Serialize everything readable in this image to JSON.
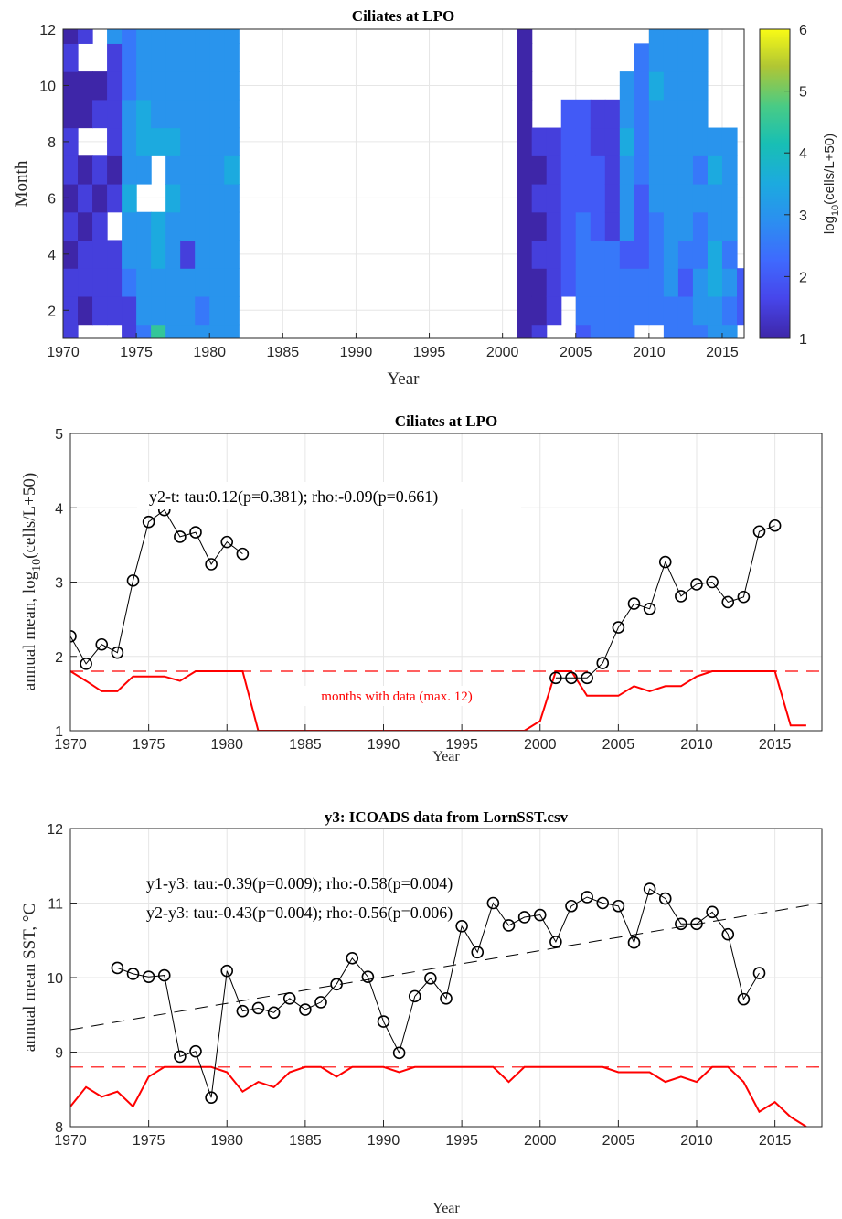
{
  "chart_data": [
    {
      "type": "heatmap",
      "title": "Ciliates at LPO",
      "xlabel": "Year",
      "ylabel": "Month",
      "colorbar_label_base": "log",
      "colorbar_label_sub": "10",
      "colorbar_label_rest": "(cells/L+50)",
      "xlim": [
        1970,
        2016.5
      ],
      "ylim": [
        1,
        12
      ],
      "zlim": [
        1,
        6
      ],
      "xticks": [
        1970,
        1975,
        1980,
        1985,
        1990,
        1995,
        2000,
        2005,
        2010,
        2015
      ],
      "yticks": [
        2,
        4,
        6,
        8,
        10,
        12
      ],
      "cticks": [
        1,
        2,
        3,
        4,
        5,
        6
      ],
      "colormap": "parula",
      "years": [
        1970,
        1971,
        1972,
        1973,
        1974,
        1975,
        1976,
        1977,
        1978,
        1979,
        1980,
        1981,
        2001,
        2002,
        2003,
        2004,
        2005,
        2006,
        2007,
        2008,
        2009,
        2010,
        2011,
        2012,
        2013,
        2014,
        2015,
        2016
      ],
      "months": [
        1,
        2,
        3,
        4,
        5,
        6,
        7,
        8,
        9,
        10,
        11,
        12
      ],
      "values": [
        [
          1.5,
          1.8,
          1.6,
          1.4,
          1.5,
          1.4,
          1.6,
          1.5,
          1.4,
          1.4,
          1.6,
          1.3
        ],
        [
          null,
          1.4,
          1.5,
          1.5,
          1.3,
          1.5,
          1.4,
          null,
          1.4,
          1.4,
          null,
          1.5
        ],
        [
          null,
          1.7,
          1.5,
          1.8,
          1.6,
          1.4,
          1.8,
          null,
          1.6,
          1.3,
          null,
          null
        ],
        [
          null,
          1.5,
          1.6,
          1.5,
          null,
          1.5,
          1.3,
          1.5,
          1.6,
          1.5,
          1.9,
          3.2
        ],
        [
          1.6,
          1.8,
          2.5,
          3.0,
          3.4,
          3.5,
          3.4,
          3.3,
          3.0,
          2.8,
          2.7,
          2.9
        ],
        [
          2.6,
          3.0,
          3.2,
          3.3,
          3.4,
          null,
          3.3,
          3.5,
          3.5,
          3.2,
          3.2,
          3.4
        ],
        [
          4.6,
          3.3,
          3.1,
          3.5,
          3.6,
          null,
          null,
          3.5,
          3.1,
          3.0,
          3.1,
          3.2
        ],
        [
          3.3,
          3.4,
          3.2,
          3.2,
          3.3,
          3.5,
          3.2,
          3.5,
          3.2,
          3.1,
          3.2,
          3.2
        ],
        [
          3.3,
          3.1,
          3.2,
          1.8,
          3.1,
          3.3,
          3.2,
          3.1,
          3.0,
          3.0,
          3.0,
          3.1
        ],
        [
          3.1,
          2.5,
          3.1,
          3.2,
          3.2,
          3.3,
          3.2,
          3.2,
          3.0,
          3.1,
          3.1,
          3.1
        ],
        [
          3.1,
          3.1,
          3.2,
          3.3,
          3.2,
          3.3,
          3.2,
          3.3,
          3.1,
          3.0,
          3.0,
          3.1
        ],
        [
          3.2,
          3.1,
          3.2,
          3.2,
          3.1,
          3.2,
          3.5,
          3.1,
          3.1,
          3.0,
          3.0,
          3.0
        ],
        [
          1.3,
          1.3,
          1.3,
          1.3,
          1.3,
          1.3,
          1.4,
          1.4,
          1.3,
          1.3,
          1.3,
          1.3
        ],
        [
          1.5,
          1.4,
          1.4,
          1.5,
          1.4,
          1.5,
          1.4,
          1.5,
          null,
          null,
          null,
          null
        ],
        [
          null,
          1.6,
          1.8,
          1.8,
          1.8,
          1.7,
          1.6,
          1.6,
          null,
          null,
          null,
          null
        ],
        [
          null,
          null,
          2.0,
          2.0,
          2.0,
          2.0,
          2.0,
          2.0,
          2.0,
          null,
          null,
          null
        ],
        [
          2.2,
          2.6,
          2.6,
          2.6,
          2.5,
          2.4,
          2.2,
          2.1,
          2.1,
          null,
          null,
          null
        ],
        [
          2.6,
          2.8,
          2.9,
          2.9,
          2.3,
          2.0,
          2.0,
          1.8,
          1.8,
          null,
          null,
          null
        ],
        [
          2.8,
          2.7,
          2.6,
          2.8,
          1.5,
          1.6,
          1.5,
          1.8,
          1.8,
          null,
          null,
          null
        ],
        [
          2.7,
          2.5,
          2.5,
          2.4,
          3.0,
          3.2,
          3.4,
          3.9,
          3.0,
          3.0,
          null,
          null
        ],
        [
          null,
          2.8,
          2.6,
          2.2,
          2.4,
          2.4,
          2.6,
          2.8,
          2.9,
          2.9,
          2.7,
          null
        ],
        [
          null,
          2.8,
          2.9,
          2.6,
          2.8,
          3.0,
          3.1,
          3.2,
          3.1,
          3.6,
          3.0,
          3.0
        ],
        [
          2.7,
          2.7,
          3.0,
          3.2,
          3.0,
          3.2,
          3.0,
          3.1,
          3.2,
          3.1,
          3.0,
          3.1
        ],
        [
          2.8,
          2.6,
          2.4,
          2.7,
          3.2,
          3.4,
          3.3,
          3.3,
          3.0,
          3.2,
          3.2,
          3.0
        ],
        [
          2.9,
          3.1,
          3.2,
          2.9,
          2.9,
          3.0,
          2.8,
          3.0,
          3.2,
          3.0,
          3.2,
          3.2
        ],
        [
          3.3,
          3.1,
          3.7,
          3.6,
          3.4,
          3.2,
          3.6,
          3.4,
          null,
          null,
          null,
          null
        ],
        [
          3.1,
          2.9,
          3.0,
          2.8,
          3.1,
          3.1,
          3.0,
          3.2,
          null,
          null,
          null,
          null
        ],
        [
          null,
          2.4,
          2.2,
          null,
          null,
          null,
          null,
          null,
          null,
          null,
          null,
          null
        ]
      ]
    },
    {
      "type": "line",
      "title": "Ciliates at LPO",
      "xlabel": "Year",
      "ylabel_pre": "annual mean, log",
      "ylabel_sub": "10",
      "ylabel_post": "(cells/L+50)",
      "xlim": [
        1970,
        2018
      ],
      "ylim": [
        1,
        5
      ],
      "xticks": [
        1970,
        1975,
        1980,
        1985,
        1990,
        1995,
        2000,
        2005,
        2010,
        2015
      ],
      "yticks": [
        1,
        2,
        3,
        4,
        5
      ],
      "annotation": "y2-t: tau:0.12(p=0.381); rho:-0.09(p=0.661)",
      "months_label": "months with data (max. 12)",
      "dashed_ref": 1.8,
      "series": [
        {
          "x": [
            1970,
            1971,
            1972,
            1973,
            1974,
            1975,
            1976,
            1977,
            1978,
            1979,
            1980,
            1981
          ],
          "values": [
            2.27,
            1.9,
            2.16,
            2.05,
            3.02,
            3.81,
            3.97,
            3.61,
            3.67,
            3.24,
            3.54,
            3.38
          ]
        },
        {
          "x": [
            2001,
            2002,
            2003,
            2004,
            2005,
            2006,
            2007,
            2008,
            2009,
            2010,
            2011,
            2012,
            2013,
            2014,
            2015
          ],
          "values": [
            1.71,
            1.71,
            1.71,
            1.91,
            2.39,
            2.71,
            2.64,
            3.27,
            2.81,
            2.97,
            3.0,
            2.73,
            2.8,
            3.68,
            3.76
          ]
        },
        {
          "x": [
            1970,
            1971,
            1972,
            1973,
            1974,
            1975,
            1976,
            1977,
            1978,
            1979,
            1980,
            1981,
            1982,
            1999,
            2000,
            2001,
            2002,
            2003,
            2004,
            2005,
            2006,
            2007,
            2008,
            2009,
            2010,
            2011,
            2012,
            2013,
            2014,
            2015,
            2016,
            2017
          ],
          "values": [
            1.8,
            1.67,
            1.53,
            1.53,
            1.73,
            1.73,
            1.73,
            1.67,
            1.8,
            1.8,
            1.8,
            1.8,
            1.0,
            1.0,
            1.13,
            1.8,
            1.8,
            1.47,
            1.47,
            1.47,
            1.6,
            1.53,
            1.6,
            1.6,
            1.73,
            1.8,
            1.8,
            1.8,
            1.8,
            1.8,
            1.07,
            1.07
          ],
          "color": "#ff0000"
        }
      ]
    },
    {
      "type": "line",
      "title": "y3: ICOADS data from LornSST.csv",
      "xlabel": "Year",
      "ylabel": "annual mean SST, °C",
      "xlim": [
        1970,
        2018
      ],
      "ylim": [
        8,
        12
      ],
      "xticks": [
        1970,
        1975,
        1980,
        1985,
        1990,
        1995,
        2000,
        2005,
        2010,
        2015
      ],
      "yticks": [
        8,
        9,
        10,
        11,
        12
      ],
      "annotations": [
        "y1-y3: tau:-0.39(p=0.009); rho:-0.58(p=0.004)",
        "y2-y3: tau:-0.43(p=0.004); rho:-0.56(p=0.006)"
      ],
      "dashed_ref": 8.8,
      "trend": {
        "x": [
          1970,
          2018
        ],
        "y": [
          9.3,
          11.0
        ]
      },
      "series": [
        {
          "x": [
            1973,
            1974,
            1975,
            1976,
            1977,
            1978,
            1979,
            1980,
            1981,
            1982,
            1983,
            1984,
            1985,
            1986,
            1987,
            1988,
            1989,
            1990,
            1991,
            1992,
            1993,
            1994,
            1995,
            1996,
            1997,
            1998,
            1999,
            2000,
            2001,
            2002,
            2003,
            2004,
            2005,
            2006,
            2007,
            2008,
            2009,
            2010,
            2011,
            2012,
            2013,
            2014
          ],
          "values": [
            10.13,
            10.05,
            10.01,
            10.03,
            8.94,
            9.01,
            8.39,
            10.09,
            9.55,
            9.59,
            9.53,
            9.72,
            9.57,
            9.67,
            9.91,
            10.26,
            10.01,
            9.41,
            8.99,
            9.75,
            9.99,
            9.72,
            10.69,
            10.34,
            11.0,
            10.7,
            10.81,
            10.84,
            10.48,
            10.96,
            11.08,
            11.0,
            10.96,
            10.47,
            11.19,
            11.06,
            10.72,
            10.72,
            10.88,
            10.58,
            9.71,
            10.06
          ]
        },
        {
          "x": [
            1970,
            1971,
            1972,
            1973,
            1974,
            1975,
            1976,
            1977,
            1978,
            1979,
            1980,
            1981,
            1982,
            1983,
            1984,
            1985,
            1986,
            1987,
            1988,
            1989,
            1990,
            1991,
            1992,
            1993,
            1994,
            1995,
            1996,
            1997,
            1998,
            1999,
            2000,
            2001,
            2002,
            2003,
            2004,
            2005,
            2006,
            2007,
            2008,
            2009,
            2010,
            2011,
            2012,
            2013,
            2014,
            2015,
            2016,
            2017
          ],
          "values": [
            8.27,
            8.53,
            8.4,
            8.47,
            8.27,
            8.67,
            8.8,
            8.8,
            8.8,
            8.8,
            8.73,
            8.47,
            8.6,
            8.53,
            8.73,
            8.8,
            8.8,
            8.67,
            8.8,
            8.8,
            8.8,
            8.73,
            8.8,
            8.8,
            8.8,
            8.8,
            8.8,
            8.8,
            8.6,
            8.8,
            8.8,
            8.8,
            8.8,
            8.8,
            8.8,
            8.73,
            8.73,
            8.73,
            8.6,
            8.67,
            8.6,
            8.8,
            8.8,
            8.6,
            8.2,
            8.33,
            8.13,
            8.0
          ],
          "color": "#ff0000"
        }
      ]
    }
  ]
}
